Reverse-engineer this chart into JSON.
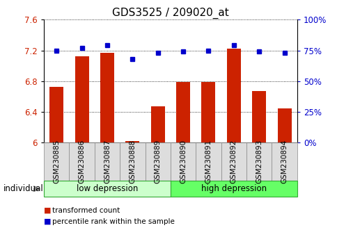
{
  "title": "GDS3525 / 209020_at",
  "samples": [
    "GSM230885",
    "GSM230886",
    "GSM230887",
    "GSM230888",
    "GSM230889",
    "GSM230890",
    "GSM230891",
    "GSM230892",
    "GSM230893",
    "GSM230894"
  ],
  "bar_values": [
    6.73,
    7.12,
    7.17,
    6.02,
    6.47,
    6.79,
    6.79,
    7.22,
    6.67,
    6.45
  ],
  "percentile_values": [
    75,
    77,
    79,
    68,
    73,
    74,
    75,
    79,
    74,
    73
  ],
  "bar_color": "#cc2200",
  "percentile_color": "#0000cc",
  "ylim_left": [
    6.0,
    7.6
  ],
  "ylim_right": [
    0,
    100
  ],
  "yticks_left": [
    6.0,
    6.4,
    6.8,
    7.2,
    7.6
  ],
  "ytick_labels_left": [
    "6",
    "6.4",
    "6.8",
    "7.2",
    "7.6"
  ],
  "yticks_right": [
    0,
    25,
    50,
    75,
    100
  ],
  "ytick_labels_right": [
    "0%",
    "25%",
    "50%",
    "75%",
    "100%"
  ],
  "group1_label": "low depression",
  "group2_label": "high depression",
  "group1_count": 5,
  "group2_count": 5,
  "group1_color": "#ccffcc",
  "group2_color": "#66ff66",
  "individual_label": "individual",
  "legend1": "transformed count",
  "legend2": "percentile rank within the sample",
  "bar_width": 0.55,
  "bar_color_hex": "#bb2200",
  "xlabel_color": "#cc2200",
  "ylabel_right_color": "#0000cc",
  "title_fontsize": 11,
  "tick_fontsize": 8.5,
  "sample_label_fontsize": 7.5
}
